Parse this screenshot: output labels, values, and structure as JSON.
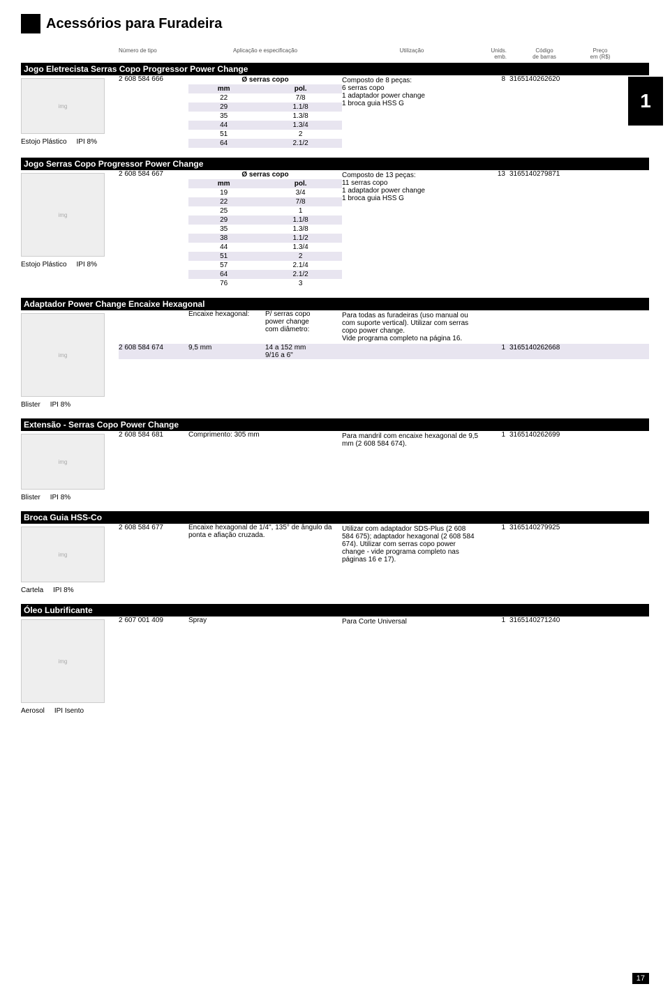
{
  "page": {
    "title": "Acessórios para Furadeira",
    "tab": "1",
    "number": "17"
  },
  "headers": {
    "tipo": "Número de tipo",
    "spec": "Aplicação e especificação",
    "util": "Utilização",
    "unid1": "Unids.",
    "unid2": "emb.",
    "cod1": "Código",
    "cod2": "de barras",
    "preco1": "Preço",
    "preco2": "em (R$)"
  },
  "s1": {
    "title": "Jogo Eletrecista Serras Copo Progressor Power Change",
    "tipo": "2 608 584 666",
    "spec_header": "Ø serras copo",
    "col_mm": "mm",
    "col_pol": "pol.",
    "rows": [
      [
        "22",
        "7/8"
      ],
      [
        "29",
        "1.1/8"
      ],
      [
        "35",
        "1.3/8"
      ],
      [
        "44",
        "1.3/4"
      ],
      [
        "51",
        "2"
      ],
      [
        "64",
        "2.1/2"
      ]
    ],
    "util1": "Composto de 8 peças:",
    "util2": "6 serras copo",
    "util3": "1 adaptador power change",
    "util4": "1 broca guia HSS G",
    "unid": "8",
    "cod": "3165140262620",
    "pkg": "Estojo Plástico",
    "ipi": "IPI 8%"
  },
  "s2": {
    "title": "Jogo Serras Copo Progressor Power Change",
    "tipo": "2 608 584 667",
    "spec_header": "Ø serras copo",
    "col_mm": "mm",
    "col_pol": "pol.",
    "rows": [
      [
        "19",
        "3/4"
      ],
      [
        "22",
        "7/8"
      ],
      [
        "25",
        "1"
      ],
      [
        "29",
        "1.1/8"
      ],
      [
        "35",
        "1.3/8"
      ],
      [
        "38",
        "1.1/2"
      ],
      [
        "44",
        "1.3/4"
      ],
      [
        "51",
        "2"
      ],
      [
        "57",
        "2.1/4"
      ],
      [
        "64",
        "2.1/2"
      ],
      [
        "76",
        "3"
      ]
    ],
    "util1": "Composto de 13 peças:",
    "util2": "11 serras copo",
    "util3": "1 adaptador power change",
    "util4": "1 broca guia HSS G",
    "unid": "13",
    "cod": "3165140279871",
    "pkg": "Estojo Plástico",
    "ipi": "IPI 8%"
  },
  "s3": {
    "title": "Adaptador Power Change Encaixe Hexagonal",
    "row1_spec": "Encaixe hexagonal:",
    "row1_util_h1": "P/ serras copo",
    "row1_util_h2": "power change",
    "row1_util_h3": "com diâmetro:",
    "util": "Para todas as furadeiras (uso manual ou com suporte vertical). Utilizar com serras copo power change.\nVide programa completo na página 16.",
    "tipo": "2 608 584 674",
    "spec": "9,5 mm",
    "dim1": "14 a 152 mm",
    "dim2": "9/16 a 6\"",
    "unid": "1",
    "cod": "3165140262668",
    "pkg": "Blister",
    "ipi": "IPI 8%"
  },
  "s4": {
    "title": "Extensão - Serras Copo Power Change",
    "tipo": "2 608 584 681",
    "spec": "Comprimento: 305 mm",
    "util": "Para mandril com encaixe hexagonal de 9,5 mm (2 608 584 674).",
    "unid": "1",
    "cod": "3165140262699",
    "pkg": "Blister",
    "ipi": "IPI 8%"
  },
  "s5": {
    "title": "Broca Guia HSS-Co",
    "tipo": "2 608 584 677",
    "spec": "Encaixe hexagonal de 1/4\", 135° de ângulo da ponta e afiação cruzada.",
    "util": "Utilizar com adaptador SDS-Plus (2 608 584 675); adaptador hexagonal (2 608 584 674). Utilizar com serras copo power change - vide programa completo nas páginas 16 e 17).",
    "unid": "1",
    "cod": "3165140279925",
    "pkg": "Cartela",
    "ipi": "IPI 8%"
  },
  "s6": {
    "title": "Óleo Lubrificante",
    "tipo": "2 607 001 409",
    "spec": "Spray",
    "util": "Para Corte Universal",
    "unid": "1",
    "cod": "3165140271240",
    "pkg": "Aerosol",
    "ipi": "IPI Isento"
  }
}
